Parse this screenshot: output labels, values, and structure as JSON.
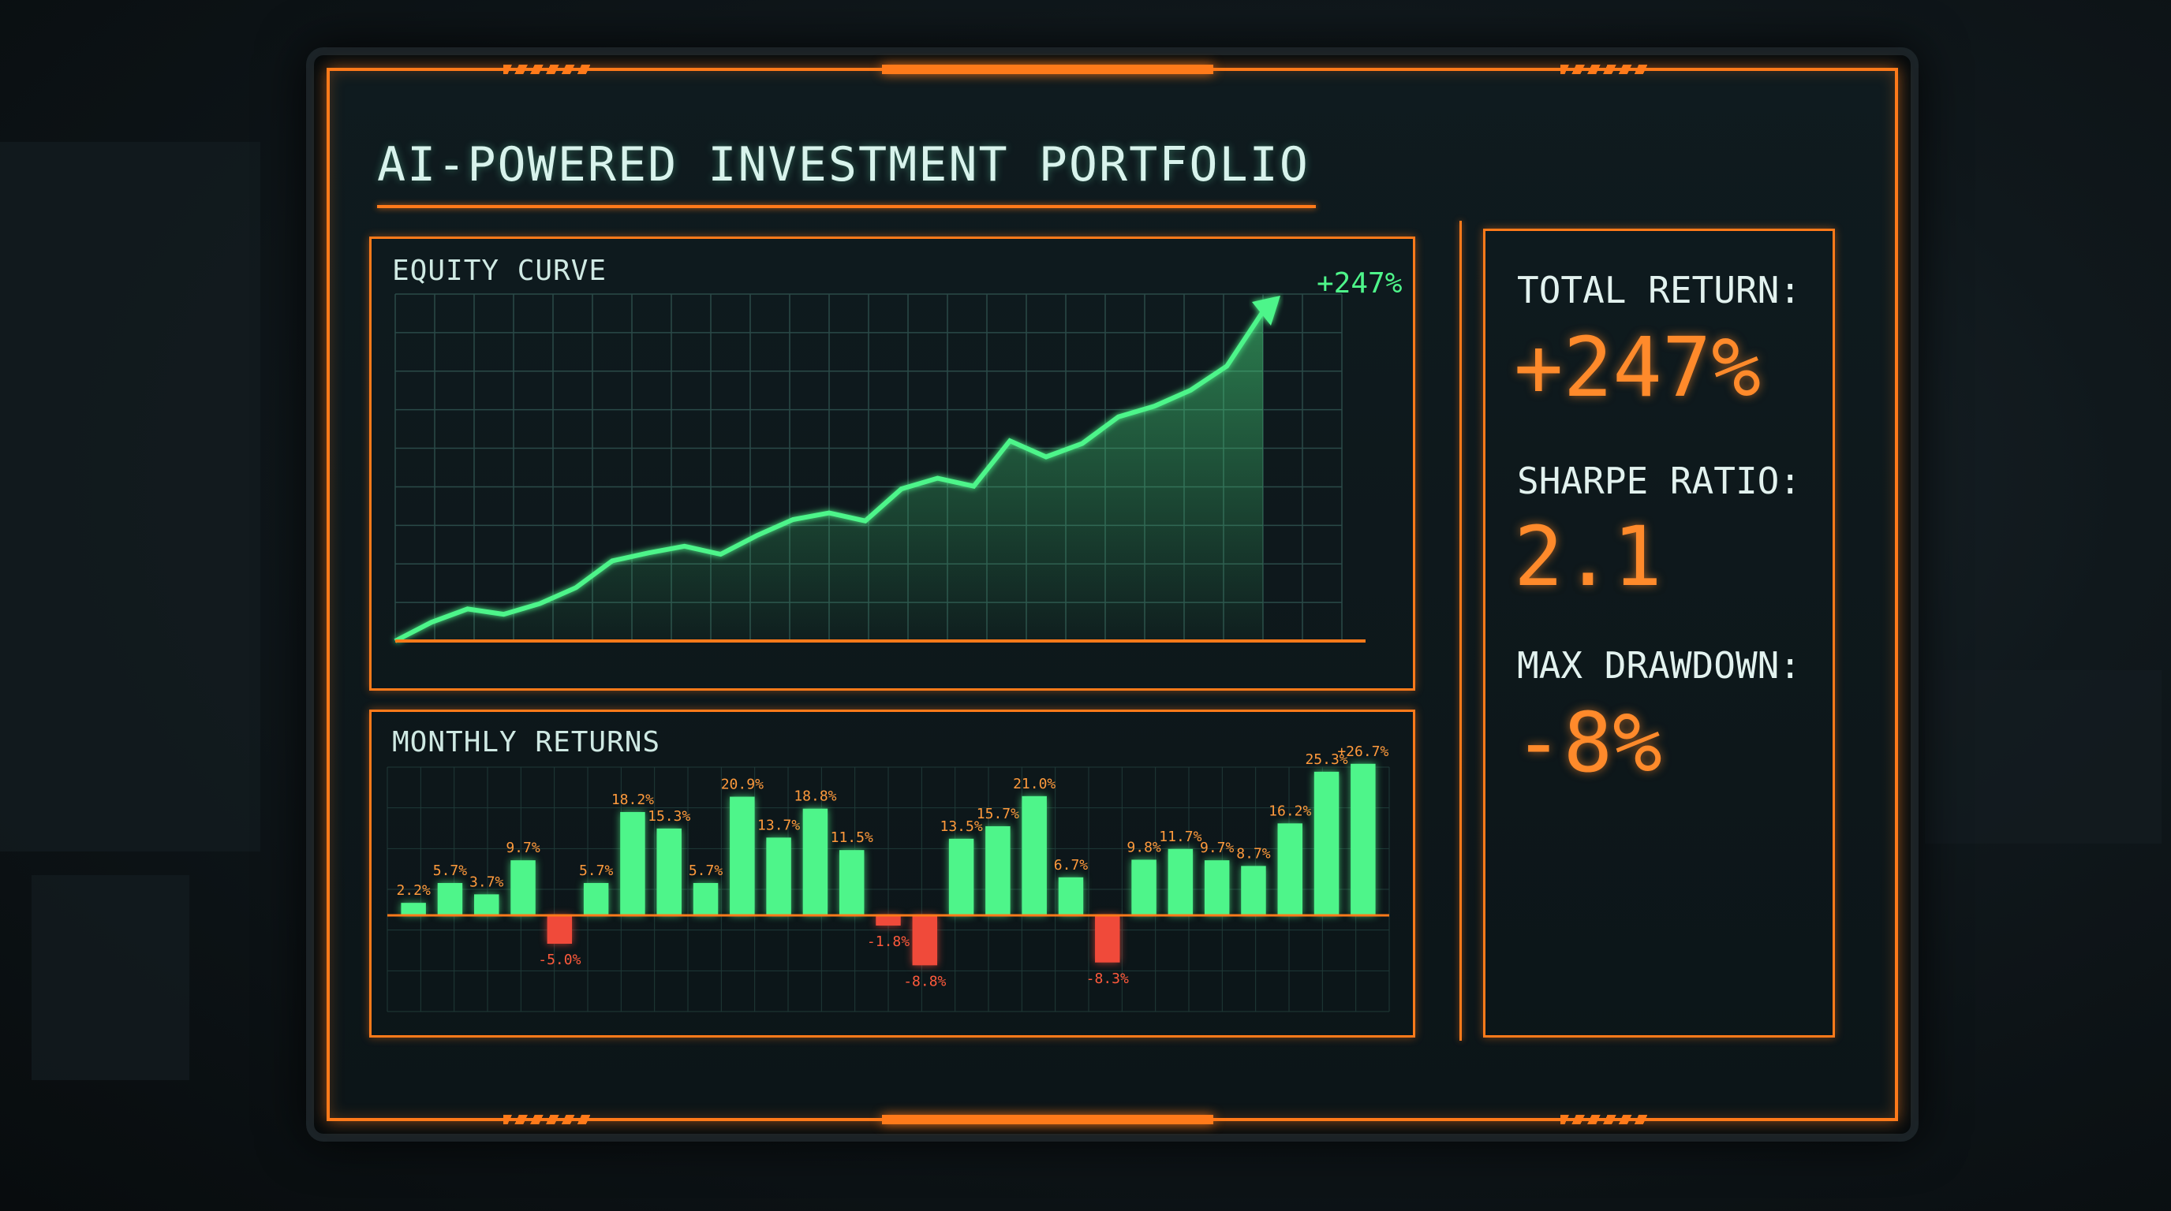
{
  "dashboard": {
    "title": "AI-POWERED INVESTMENT PORTFOLIO"
  },
  "metrics": {
    "total_return_label": "TOTAL RETURN:",
    "total_return_value": "+247%",
    "sharpe_label": "SHARPE RATIO:",
    "sharpe_value": "2.1",
    "drawdown_label": "MAX DRAWDOWN:",
    "drawdown_value": "-8%"
  },
  "colors": {
    "accent": "#ff7a1a",
    "positive": "#4ef58a",
    "negative": "#f04a3a",
    "metric_value": "#ff8a2b"
  },
  "chart_data": [
    {
      "type": "line",
      "title": "EQUITY CURVE",
      "end_label": "+247%",
      "x": [
        0,
        1,
        2,
        3,
        4,
        5,
        6,
        7,
        8,
        9,
        10,
        11,
        12,
        13,
        14,
        15,
        16,
        17,
        18,
        19,
        20,
        21,
        22,
        23,
        24
      ],
      "values": [
        0,
        14,
        24,
        20,
        28,
        40,
        60,
        66,
        71,
        65,
        79,
        91,
        96,
        90,
        114,
        122,
        116,
        150,
        138,
        148,
        168,
        176,
        188,
        206,
        247
      ],
      "ylim": [
        0,
        260
      ],
      "grid": true
    },
    {
      "type": "bar",
      "title": "MONTHLY RETURNS",
      "values": [
        2.2,
        5.7,
        3.7,
        9.7,
        -5.0,
        5.7,
        18.2,
        15.3,
        5.7,
        20.9,
        13.7,
        18.8,
        11.5,
        -1.8,
        -8.8,
        13.5,
        15.7,
        21.0,
        6.7,
        -8.3,
        9.8,
        11.7,
        9.7,
        8.7,
        16.2,
        25.3,
        26.7
      ],
      "data_labels": [
        "2.2%",
        "5.7%",
        "3.7%",
        "9.7%",
        "-5.0%",
        "5.7%",
        "18.2%",
        "15.3%",
        "5.7%",
        "20.9%",
        "13.7%",
        "18.8%",
        "11.5%",
        "-1.8%",
        "-8.8%",
        "13.5%",
        "15.7%",
        "21.0%",
        "6.7%",
        "-8.3%",
        "9.8%",
        "11.7%",
        "9.7%",
        "8.7%",
        "16.2%",
        "25.3%",
        "+26.7%"
      ],
      "grid": true
    }
  ]
}
